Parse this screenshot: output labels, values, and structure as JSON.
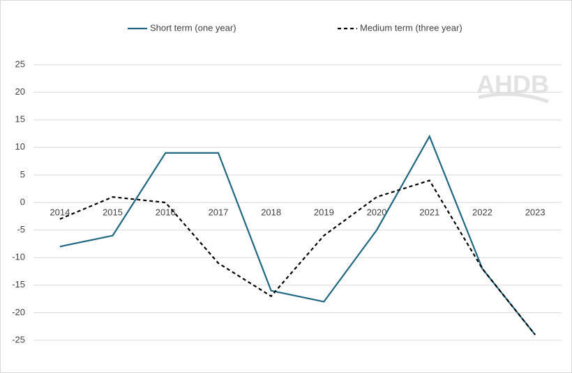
{
  "chart_data": {
    "type": "line",
    "categories": [
      "2014",
      "2015",
      "2016",
      "2017",
      "2018",
      "2019",
      "2020",
      "2021",
      "2022",
      "2023"
    ],
    "series": [
      {
        "name": "Short term (one year)",
        "color": "#1f6782",
        "dash": false,
        "values": [
          -8,
          -6,
          9,
          9,
          -16,
          -18,
          -5,
          12,
          -12,
          -24
        ]
      },
      {
        "name": "Medium term (three year)",
        "color": "#000000",
        "dash": true,
        "values": [
          -3,
          1,
          0,
          -11,
          -17,
          -6,
          1,
          4,
          -12,
          -24
        ]
      }
    ],
    "ylim": [
      -25,
      25
    ],
    "yticks": [
      -25,
      -20,
      -15,
      -10,
      -5,
      0,
      5,
      10,
      15,
      20,
      25
    ],
    "grid": true,
    "legend": "top",
    "watermark": "AHDB"
  }
}
